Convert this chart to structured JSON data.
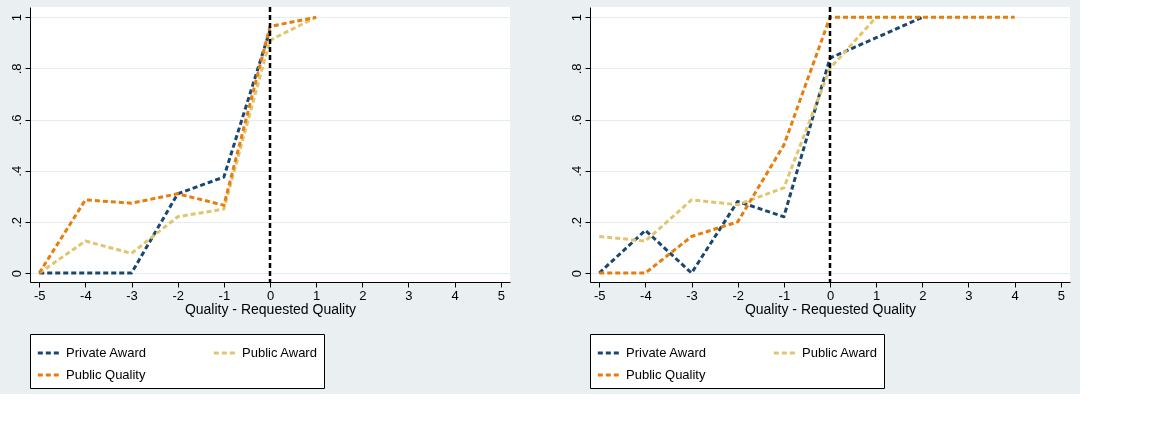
{
  "chart_data": [
    {
      "type": "line",
      "xlabel": "Quality - Requested Quality",
      "xlim": [
        -5.2,
        5.2
      ],
      "xticks": [
        -5,
        -4,
        -3,
        -2,
        -1,
        0,
        1,
        2,
        3,
        4,
        5
      ],
      "ylim": [
        -0.035,
        1.04
      ],
      "yticks": [
        0,
        {
          "value": 0.2,
          "label": ".2"
        },
        {
          "value": 0.4,
          "label": ".4"
        },
        {
          "value": 0.6,
          "label": ".6"
        },
        {
          "value": 0.8,
          "label": ".8"
        },
        1
      ],
      "grid": "y",
      "legend": "bottom",
      "line_style": "dashed",
      "marker": "none",
      "ref_lines": [
        {
          "axis": "x",
          "value": 0,
          "color": "#000000",
          "line_style": "dashed"
        }
      ],
      "series": [
        {
          "name": "Private Award",
          "color": "#1a476f",
          "x": [
            -5,
            -4,
            -3,
            -2,
            -1,
            0
          ],
          "values": [
            0,
            0,
            0,
            0.31,
            0.375,
            0.95
          ]
        },
        {
          "name": "Public Award",
          "color": "#e1c56e",
          "x": [
            -5,
            -4,
            -3,
            -2,
            -1,
            0,
            1
          ],
          "values": [
            0,
            0.125,
            0.077,
            0.22,
            0.25,
            0.91,
            1
          ]
        },
        {
          "name": "Public Quality",
          "color": "#e87d0b",
          "x": [
            -5,
            -4,
            -3,
            -2,
            -1,
            0,
            1
          ],
          "values": [
            0,
            0.286,
            0.273,
            0.31,
            0.265,
            0.964,
            1
          ]
        }
      ]
    },
    {
      "type": "line",
      "xlabel": "Quality - Requested Quality",
      "xlim": [
        -5.2,
        5.2
      ],
      "xticks": [
        -5,
        -4,
        -3,
        -2,
        -1,
        0,
        1,
        2,
        3,
        4,
        5
      ],
      "ylim": [
        -0.035,
        1.04
      ],
      "yticks": [
        0,
        {
          "value": 0.2,
          "label": ".2"
        },
        {
          "value": 0.4,
          "label": ".4"
        },
        {
          "value": 0.6,
          "label": ".6"
        },
        {
          "value": 0.8,
          "label": ".8"
        },
        1
      ],
      "grid": "y",
      "legend": "bottom",
      "line_style": "dashed",
      "marker": "none",
      "ref_lines": [
        {
          "axis": "x",
          "value": 0,
          "color": "#000000",
          "line_style": "dashed"
        }
      ],
      "series": [
        {
          "name": "Private Award",
          "color": "#1a476f",
          "x": [
            -5,
            -4,
            -3,
            -2,
            -1,
            0,
            1,
            2
          ],
          "values": [
            0,
            0.167,
            0,
            0.28,
            0.22,
            0.84,
            0.92,
            1
          ]
        },
        {
          "name": "Public Award",
          "color": "#e1c56e",
          "x": [
            -5,
            -4,
            -3,
            -2,
            -1,
            0,
            1
          ],
          "values": [
            0.143,
            0.125,
            0.286,
            0.267,
            0.333,
            0.8,
            1
          ]
        },
        {
          "name": "Public Quality",
          "color": "#e87d0b",
          "x": [
            -5,
            -4,
            -3,
            -2,
            -1,
            0,
            1,
            2,
            3,
            4
          ],
          "values": [
            0,
            0,
            0.143,
            0.2,
            0.5,
            1,
            1,
            1,
            1,
            1
          ]
        }
      ]
    }
  ]
}
